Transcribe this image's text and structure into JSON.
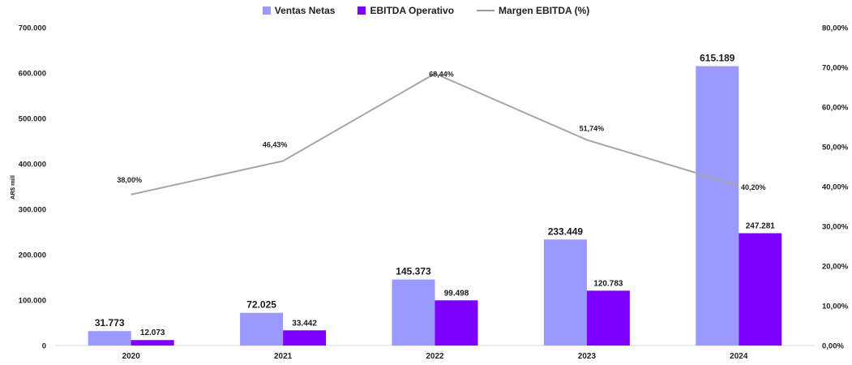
{
  "legend": {
    "ventas": "Ventas Netas",
    "ebitda": "EBITDA Operativo",
    "margen": "Margen EBITDA (%)"
  },
  "colors": {
    "ventas": "#9999FF",
    "ebitda": "#8000FF",
    "margen": "#A6A6A6"
  },
  "chart_data": {
    "type": "bar",
    "categories": [
      "2020",
      "2021",
      "2022",
      "2023",
      "2024"
    ],
    "series": [
      {
        "name": "Ventas Netas",
        "kind": "bar",
        "axis": "left",
        "values": [
          31773,
          72025,
          145373,
          233449,
          615189
        ],
        "labels": [
          "31.773",
          "72.025",
          "145.373",
          "233.449",
          "615.189"
        ]
      },
      {
        "name": "EBITDA Operativo",
        "kind": "bar",
        "axis": "left",
        "values": [
          12073,
          33442,
          99498,
          120783,
          247281
        ],
        "labels": [
          "12.073",
          "33.442",
          "99.498",
          "120.783",
          "247.281"
        ]
      },
      {
        "name": "Margen EBITDA (%)",
        "kind": "line",
        "axis": "right",
        "values": [
          38.0,
          46.43,
          68.44,
          51.74,
          40.2
        ],
        "labels": [
          "38,00%",
          "46,43%",
          "68,44%",
          "51,74%",
          "40,20%"
        ]
      }
    ],
    "ylabel": "AR$ mill",
    "ylim": [
      0,
      700000
    ],
    "y_ticks": [
      0,
      100000,
      200000,
      300000,
      400000,
      500000,
      600000,
      700000
    ],
    "y_tick_labels": [
      "0",
      "100.000",
      "200.000",
      "300.000",
      "400.000",
      "500.000",
      "600.000",
      "700.000"
    ],
    "y2lim": [
      0,
      80
    ],
    "y2_ticks": [
      0,
      10,
      20,
      30,
      40,
      50,
      60,
      70,
      80
    ],
    "y2_tick_labels": [
      "0,00%",
      "10,00%",
      "20,00%",
      "30,00%",
      "40,00%",
      "50,00%",
      "60,00%",
      "70,00%",
      "80,00%"
    ],
    "grid": false,
    "legend_position": "top-center"
  }
}
